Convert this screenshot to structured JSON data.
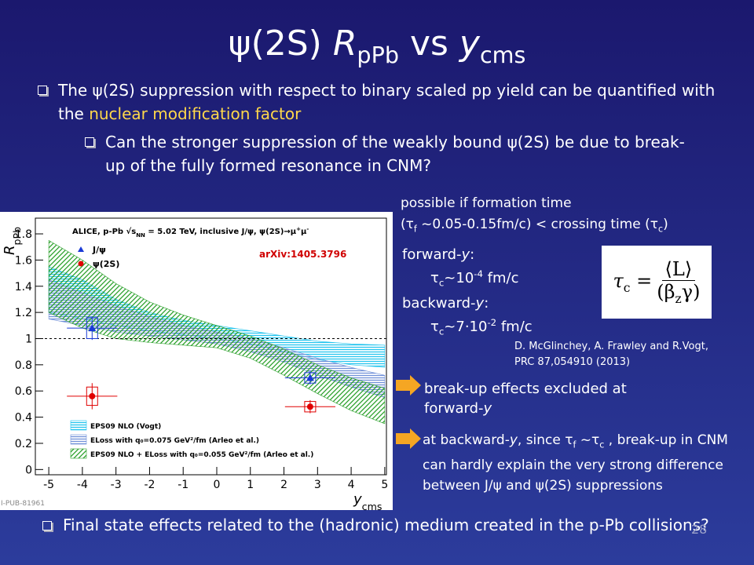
{
  "title": [
    {
      "t": "ψ(2S) "
    },
    {
      "t": "R",
      "s": "i"
    },
    {
      "t": "pPb",
      "s": "sub"
    },
    {
      "t": " vs "
    },
    {
      "t": "y",
      "s": "i"
    },
    {
      "t": "cms",
      "s": "sub"
    }
  ],
  "intro": [
    {
      "t": "The ψ(2S) suppression with respect to binary scaled pp yield can be quantified with the "
    },
    {
      "t": "nuclear modification factor",
      "s": "hl"
    }
  ],
  "question": [
    {
      "t": "Can the stronger suppression of the weakly bound ψ(2S) be due to break-up of the fully formed resonance in CNM?"
    }
  ],
  "crossing_note": [
    [
      {
        "t": "possible if formation time"
      }
    ],
    [
      {
        "t": "(τ"
      },
      {
        "t": "f",
        "s": "sub"
      },
      {
        "t": " ~0.05-0.15fm/c)  < crossing time (τ"
      },
      {
        "t": "c",
        "s": "sub"
      },
      {
        "t": ")"
      }
    ]
  ],
  "crossing_times": [
    [
      {
        "t": "forward-"
      },
      {
        "t": "y",
        "s": "i"
      },
      {
        "t": ":"
      }
    ],
    [
      {
        "t": "τ"
      },
      {
        "t": "c",
        "s": "sub"
      },
      {
        "t": "~10"
      },
      {
        "t": "-4",
        "s": "sup"
      },
      {
        "t": " fm/c"
      }
    ],
    [
      {
        "t": "backward-"
      },
      {
        "t": "y",
        "s": "i"
      },
      {
        "t": ":"
      }
    ],
    [
      {
        "t": "τ"
      },
      {
        "t": "c",
        "s": "sub"
      },
      {
        "t": "~7·10"
      },
      {
        "t": "-2",
        "s": "sup"
      },
      {
        "t": " fm/c"
      }
    ]
  ],
  "formula": {
    "lhs": [
      {
        "t": "τ",
        "s": "i"
      },
      {
        "t": "c",
        "s": "sub"
      },
      {
        "t": " ="
      }
    ],
    "numerator": [
      {
        "t": "⟨L⟩"
      }
    ],
    "denominator": [
      {
        "t": "(β"
      },
      {
        "t": "z",
        "s": "sub"
      },
      {
        "t": "γ)"
      }
    ]
  },
  "reference": [
    "D. McGlinchey, A. Frawley and R.Vogt,",
    "PRC 87,054910 (2013)"
  ],
  "conclusions": [
    [
      {
        "t": "break-up effects excluded at forward-"
      },
      {
        "t": "y",
        "s": "i"
      }
    ],
    [
      {
        "t": "at backward-"
      },
      {
        "t": "y",
        "s": "i"
      },
      {
        "t": ", since τ"
      },
      {
        "t": "f",
        "s": "sub"
      },
      {
        "t": " ~τ"
      },
      {
        "t": "c",
        "s": "sub"
      },
      {
        "t": " , break-up in CNM can hardly explain the very strong difference between J/ψ and ψ(2S) suppressions"
      }
    ]
  ],
  "final_question": [
    {
      "t": "Final state effects related to the (hadronic) medium created in the p-Pb collisions?"
    }
  ],
  "page_number": "28",
  "plot": {
    "type": "scatter",
    "header": [
      {
        "t": "ALICE, p-Pb √s"
      },
      {
        "t": "NN",
        "s": "sub"
      },
      {
        "t": " = 5.02 TeV, inclusive J/ψ, ψ(2S)→μ"
      },
      {
        "t": "+",
        "s": "sup"
      },
      {
        "t": "μ"
      },
      {
        "t": "-",
        "s": "sup"
      }
    ],
    "annotation": "arXiv:1405.3796",
    "watermark": "I-PUB-81961",
    "y_label": [
      {
        "t": "R",
        "s": "i"
      },
      {
        "t": "pPb",
        "s": "sub"
      }
    ],
    "x_label": [
      {
        "t": "y",
        "s": "i"
      },
      {
        "t": "cms",
        "s": "sub"
      }
    ],
    "xlim": [
      -5.4,
      5.05
    ],
    "ylim": [
      -0.04,
      1.92
    ],
    "xticks": [
      -5,
      -4,
      -3,
      -2,
      -1,
      0,
      1,
      2,
      3,
      4,
      5
    ],
    "yticks": [
      0,
      0.2,
      0.4,
      0.6,
      0.8,
      1,
      1.2,
      1.4,
      1.6,
      1.8
    ],
    "reference_line": 1,
    "series": [
      {
        "name": "J/ψ",
        "color": "#1a3ad6",
        "marker": "triangle",
        "x": [
          -3.71,
          2.78
        ],
        "x_err": [
          0.75,
          0.75
        ],
        "values": [
          1.08,
          0.7
        ],
        "errors": [
          0.09,
          0.05
        ],
        "syst": [
          0.08,
          0.04
        ]
      },
      {
        "name": "ψ(2S)",
        "color": "#e00000",
        "marker": "circle",
        "x": [
          -3.71,
          2.78
        ],
        "x_err": [
          0.75,
          0.75
        ],
        "values": [
          0.56,
          0.48
        ],
        "errors": [
          0.1,
          0.05
        ],
        "syst": [
          0.07,
          0.04
        ]
      }
    ],
    "bands": [
      {
        "name": "EPS09 NLO (Vogt)",
        "color": "#22c4ee",
        "hatch": "horizontal",
        "x": [
          -5,
          -4,
          -3,
          -2,
          -1,
          0,
          1,
          2,
          3,
          4,
          5
        ],
        "upper": [
          1.55,
          1.45,
          1.3,
          1.2,
          1.14,
          1.1,
          1.06,
          1.02,
          0.98,
          0.96,
          0.95
        ],
        "lower": [
          1.2,
          1.15,
          1.1,
          1.06,
          1.03,
          1.0,
          0.96,
          0.9,
          0.84,
          0.8,
          0.78
        ]
      },
      {
        "name": "ELoss with q₀=0.075 GeV²/fm (Arleo et al.)",
        "color": "#6f8fd8",
        "hatch": "horizontal",
        "x": [
          -5,
          -4,
          -3,
          -2,
          -1,
          0,
          1,
          2,
          3,
          4,
          5
        ],
        "upper": [
          1.45,
          1.35,
          1.25,
          1.17,
          1.1,
          1.05,
          1.0,
          0.93,
          0.85,
          0.78,
          0.72
        ],
        "lower": [
          1.15,
          1.1,
          1.05,
          1.02,
          0.99,
          0.96,
          0.9,
          0.82,
          0.72,
          0.63,
          0.55
        ]
      },
      {
        "name": "EPS09 NLO + ELoss with q₀=0.055 GeV²/fm (Arleo et al.)",
        "color": "#2aa02a",
        "hatch": "diagonal",
        "x": [
          -5,
          -4,
          -3,
          -2,
          -1,
          0,
          1,
          2,
          3,
          4,
          5
        ],
        "upper": [
          1.75,
          1.6,
          1.42,
          1.28,
          1.18,
          1.1,
          1.02,
          0.92,
          0.8,
          0.7,
          0.62
        ],
        "lower": [
          1.2,
          1.08,
          1.0,
          0.97,
          0.95,
          0.93,
          0.85,
          0.72,
          0.58,
          0.45,
          0.35
        ]
      }
    ]
  }
}
